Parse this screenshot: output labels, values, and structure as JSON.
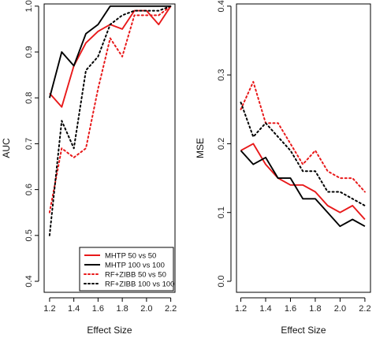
{
  "chart_data": [
    {
      "type": "line",
      "xlabel": "Effect Size",
      "ylabel": "AUC",
      "xlim": [
        1.2,
        2.2
      ],
      "ylim": [
        0.4,
        1.0
      ],
      "x_ticks": [
        "1.2",
        "1.4",
        "1.6",
        "1.8",
        "2.0",
        "2.2"
      ],
      "y_ticks": [
        "0.4",
        "0.5",
        "0.6",
        "0.7",
        "0.8",
        "0.9",
        "1.0"
      ],
      "x": [
        1.2,
        1.3,
        1.4,
        1.5,
        1.6,
        1.7,
        1.8,
        1.9,
        2.0,
        2.1,
        2.2
      ],
      "legend_position": "bottom-right",
      "series": [
        {
          "name": "MHTP 50 vs 50",
          "color": "#e8191a",
          "dash": "solid",
          "values": [
            0.81,
            0.78,
            0.87,
            0.92,
            0.945,
            0.96,
            0.95,
            0.99,
            0.99,
            0.96,
            1.0
          ]
        },
        {
          "name": "MHTP 100 vs 100",
          "color": "#000000",
          "dash": "solid",
          "values": [
            0.8,
            0.9,
            0.87,
            0.94,
            0.96,
            1.0,
            1.0,
            1.0,
            1.0,
            1.0,
            1.0
          ]
        },
        {
          "name": "RF+ZIBB 50 vs 50",
          "color": "#e8191a",
          "dash": "dotted",
          "values": [
            0.55,
            0.69,
            0.67,
            0.69,
            0.82,
            0.93,
            0.89,
            0.98,
            0.98,
            0.98,
            1.0
          ]
        },
        {
          "name": "RF+ZIBB 100 vs 100",
          "color": "#000000",
          "dash": "dotted",
          "values": [
            0.5,
            0.75,
            0.69,
            0.86,
            0.89,
            0.96,
            0.98,
            0.99,
            0.99,
            0.99,
            1.0
          ]
        }
      ]
    },
    {
      "type": "line",
      "xlabel": "Effect Size",
      "ylabel": "MSE",
      "xlim": [
        1.2,
        2.2
      ],
      "ylim": [
        0.0,
        0.4
      ],
      "x_ticks": [
        "1.2",
        "1.4",
        "1.6",
        "1.8",
        "2.0",
        "2.2"
      ],
      "y_ticks": [
        "0.0",
        "0.1",
        "0.2",
        "0.3",
        "0.4"
      ],
      "x": [
        1.2,
        1.3,
        1.4,
        1.5,
        1.6,
        1.7,
        1.8,
        1.9,
        2.0,
        2.1,
        2.2
      ],
      "series": [
        {
          "name": "MHTP 50 vs 50",
          "color": "#e8191a",
          "dash": "solid",
          "values": [
            0.19,
            0.2,
            0.17,
            0.15,
            0.14,
            0.14,
            0.13,
            0.11,
            0.1,
            0.11,
            0.09
          ]
        },
        {
          "name": "MHTP 100 vs 100",
          "color": "#000000",
          "dash": "solid",
          "values": [
            0.19,
            0.17,
            0.18,
            0.15,
            0.15,
            0.12,
            0.12,
            0.1,
            0.08,
            0.09,
            0.08
          ]
        },
        {
          "name": "RF+ZIBB 50 vs 50",
          "color": "#e8191a",
          "dash": "dotted",
          "values": [
            0.25,
            0.29,
            0.23,
            0.23,
            0.2,
            0.17,
            0.19,
            0.16,
            0.15,
            0.15,
            0.13
          ]
        },
        {
          "name": "RF+ZIBB 100 vs 100",
          "color": "#000000",
          "dash": "dotted",
          "values": [
            0.26,
            0.21,
            0.23,
            0.21,
            0.19,
            0.16,
            0.16,
            0.13,
            0.13,
            0.12,
            0.11
          ]
        }
      ]
    }
  ]
}
